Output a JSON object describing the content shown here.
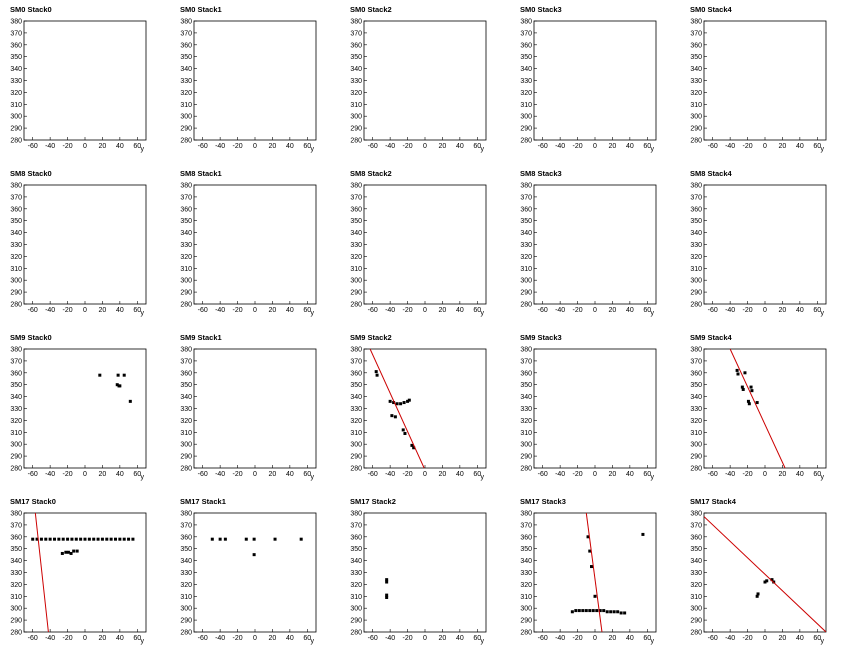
{
  "chart_data": [
    {
      "type": "scatter",
      "title": "SM0 Stack0",
      "xlabel": "y",
      "x": [],
      "values": [],
      "xlim": [
        -70,
        70
      ],
      "ylim": [
        280,
        380
      ],
      "xticks": [
        -60,
        -40,
        -20,
        0,
        20,
        40,
        60
      ],
      "yticks": [
        280,
        290,
        300,
        310,
        320,
        330,
        340,
        350,
        360,
        370,
        380
      ]
    },
    {
      "type": "scatter",
      "title": "SM0 Stack1",
      "xlabel": "y",
      "x": [],
      "values": [],
      "xlim": [
        -70,
        70
      ],
      "ylim": [
        280,
        380
      ],
      "xticks": [
        -60,
        -40,
        -20,
        0,
        20,
        40,
        60
      ],
      "yticks": [
        280,
        290,
        300,
        310,
        320,
        330,
        340,
        350,
        360,
        370,
        380
      ]
    },
    {
      "type": "scatter",
      "title": "SM0 Stack2",
      "xlabel": "y",
      "x": [],
      "values": [],
      "xlim": [
        -70,
        70
      ],
      "ylim": [
        280,
        380
      ],
      "xticks": [
        -60,
        -40,
        -20,
        0,
        20,
        40,
        60
      ],
      "yticks": [
        280,
        290,
        300,
        310,
        320,
        330,
        340,
        350,
        360,
        370,
        380
      ]
    },
    {
      "type": "scatter",
      "title": "SM0 Stack3",
      "xlabel": "y",
      "x": [],
      "values": [],
      "xlim": [
        -70,
        70
      ],
      "ylim": [
        280,
        380
      ],
      "xticks": [
        -60,
        -40,
        -20,
        0,
        20,
        40,
        60
      ],
      "yticks": [
        280,
        290,
        300,
        310,
        320,
        330,
        340,
        350,
        360,
        370,
        380
      ]
    },
    {
      "type": "scatter",
      "title": "SM0 Stack4",
      "xlabel": "y",
      "x": [],
      "values": [],
      "xlim": [
        -70,
        70
      ],
      "ylim": [
        280,
        380
      ],
      "xticks": [
        -60,
        -40,
        -20,
        0,
        20,
        40,
        60
      ],
      "yticks": [
        280,
        290,
        300,
        310,
        320,
        330,
        340,
        350,
        360,
        370,
        380
      ]
    },
    {
      "type": "scatter",
      "title": "SM8 Stack0",
      "xlabel": "y",
      "x": [],
      "values": [],
      "xlim": [
        -70,
        70
      ],
      "ylim": [
        280,
        380
      ],
      "xticks": [
        -60,
        -40,
        -20,
        0,
        20,
        40,
        60
      ],
      "yticks": [
        280,
        290,
        300,
        310,
        320,
        330,
        340,
        350,
        360,
        370,
        380
      ]
    },
    {
      "type": "scatter",
      "title": "SM8 Stack1",
      "xlabel": "y",
      "x": [],
      "values": [],
      "xlim": [
        -70,
        70
      ],
      "ylim": [
        280,
        380
      ],
      "xticks": [
        -60,
        -40,
        -20,
        0,
        20,
        40,
        60
      ],
      "yticks": [
        280,
        290,
        300,
        310,
        320,
        330,
        340,
        350,
        360,
        370,
        380
      ]
    },
    {
      "type": "scatter",
      "title": "SM8 Stack2",
      "xlabel": "y",
      "x": [],
      "values": [],
      "xlim": [
        -70,
        70
      ],
      "ylim": [
        280,
        380
      ],
      "xticks": [
        -60,
        -40,
        -20,
        0,
        20,
        40,
        60
      ],
      "yticks": [
        280,
        290,
        300,
        310,
        320,
        330,
        340,
        350,
        360,
        370,
        380
      ]
    },
    {
      "type": "scatter",
      "title": "SM8 Stack3",
      "xlabel": "y",
      "x": [],
      "values": [],
      "xlim": [
        -70,
        70
      ],
      "ylim": [
        280,
        380
      ],
      "xticks": [
        -60,
        -40,
        -20,
        0,
        20,
        40,
        60
      ],
      "yticks": [
        280,
        290,
        300,
        310,
        320,
        330,
        340,
        350,
        360,
        370,
        380
      ]
    },
    {
      "type": "scatter",
      "title": "SM8 Stack4",
      "xlabel": "y",
      "x": [],
      "values": [],
      "xlim": [
        -70,
        70
      ],
      "ylim": [
        280,
        380
      ],
      "xticks": [
        -60,
        -40,
        -20,
        0,
        20,
        40,
        60
      ],
      "yticks": [
        280,
        290,
        300,
        310,
        320,
        330,
        340,
        350,
        360,
        370,
        380
      ]
    },
    {
      "type": "scatter",
      "title": "SM9 Stack0",
      "xlabel": "y",
      "color": "#000000",
      "x": [
        17,
        38,
        45,
        37,
        39,
        40,
        52
      ],
      "values": [
        358,
        358,
        358,
        350,
        349,
        349,
        336
      ],
      "xlim": [
        -70,
        70
      ],
      "ylim": [
        280,
        380
      ],
      "xticks": [
        -60,
        -40,
        -20,
        0,
        20,
        40,
        60
      ],
      "yticks": [
        280,
        290,
        300,
        310,
        320,
        330,
        340,
        350,
        360,
        370,
        380
      ]
    },
    {
      "type": "scatter",
      "title": "SM9 Stack1",
      "xlabel": "y",
      "x": [],
      "values": [],
      "xlim": [
        -70,
        70
      ],
      "ylim": [
        280,
        380
      ],
      "xticks": [
        -60,
        -40,
        -20,
        0,
        20,
        40,
        60
      ],
      "yticks": [
        280,
        290,
        300,
        310,
        320,
        330,
        340,
        350,
        360,
        370,
        380
      ]
    },
    {
      "type": "scatter",
      "title": "SM9 Stack2",
      "xlabel": "y",
      "color": "#000000",
      "x": [
        -56,
        -55,
        -40,
        -36,
        -32,
        -28,
        -24,
        -20,
        -18,
        -38,
        -34,
        -25,
        -23,
        -15,
        -13
      ],
      "values": [
        361,
        358,
        336,
        335,
        334,
        334,
        335,
        336,
        337,
        324,
        323,
        312,
        309,
        299,
        297
      ],
      "fit": {
        "color": "#cc0000",
        "x": [
          -63,
          -1
        ],
        "values": [
          380,
          280
        ]
      },
      "xlim": [
        -70,
        70
      ],
      "ylim": [
        280,
        380
      ],
      "xticks": [
        -60,
        -40,
        -20,
        0,
        20,
        40,
        60
      ],
      "yticks": [
        280,
        290,
        300,
        310,
        320,
        330,
        340,
        350,
        360,
        370,
        380
      ]
    },
    {
      "type": "scatter",
      "title": "SM9 Stack3",
      "xlabel": "y",
      "x": [],
      "values": [],
      "xlim": [
        -70,
        70
      ],
      "ylim": [
        280,
        380
      ],
      "xticks": [
        -60,
        -40,
        -20,
        0,
        20,
        40,
        60
      ],
      "yticks": [
        280,
        290,
        300,
        310,
        320,
        330,
        340,
        350,
        360,
        370,
        380
      ]
    },
    {
      "type": "scatter",
      "title": "SM9 Stack4",
      "xlabel": "y",
      "color": "#000000",
      "x": [
        -32,
        -31,
        -23,
        -26,
        -25,
        -16,
        -15,
        -19,
        -18,
        -9
      ],
      "values": [
        362,
        359,
        360,
        348,
        346,
        348,
        345,
        336,
        334,
        335
      ],
      "fit": {
        "color": "#cc0000",
        "x": [
          -40,
          23
        ],
        "values": [
          380,
          280
        ]
      },
      "xlim": [
        -70,
        70
      ],
      "ylim": [
        280,
        380
      ],
      "xticks": [
        -60,
        -40,
        -20,
        0,
        20,
        40,
        60
      ],
      "yticks": [
        280,
        290,
        300,
        310,
        320,
        330,
        340,
        350,
        360,
        370,
        380
      ]
    },
    {
      "type": "scatter",
      "title": "SM17 Stack0",
      "xlabel": "y",
      "color": "#000000",
      "x": [
        -60,
        -55,
        -50,
        -45,
        -40,
        -35,
        -30,
        -25,
        -20,
        -15,
        -10,
        -5,
        0,
        5,
        10,
        15,
        20,
        25,
        30,
        35,
        40,
        45,
        50,
        55,
        -26,
        -22,
        -19,
        -16,
        -13,
        -9
      ],
      "values": [
        358,
        358,
        358,
        358,
        358,
        358,
        358,
        358,
        358,
        358,
        358,
        358,
        358,
        358,
        358,
        358,
        358,
        358,
        358,
        358,
        358,
        358,
        358,
        358,
        346,
        347,
        347,
        346,
        348,
        348
      ],
      "fit": {
        "color": "#cc0000",
        "x": [
          -57,
          -42
        ],
        "values": [
          380,
          280
        ]
      },
      "xlim": [
        -70,
        70
      ],
      "ylim": [
        280,
        380
      ],
      "xticks": [
        -60,
        -40,
        -20,
        0,
        20,
        40,
        60
      ],
      "yticks": [
        280,
        290,
        300,
        310,
        320,
        330,
        340,
        350,
        360,
        370,
        380
      ]
    },
    {
      "type": "scatter",
      "title": "SM17 Stack1",
      "xlabel": "y",
      "color": "#000000",
      "x": [
        -49,
        -40,
        -34,
        -10,
        -1,
        23,
        53,
        -1
      ],
      "values": [
        358,
        358,
        358,
        358,
        358,
        358,
        358,
        345
      ],
      "xlim": [
        -70,
        70
      ],
      "ylim": [
        280,
        380
      ],
      "xticks": [
        -60,
        -40,
        -20,
        0,
        20,
        40,
        60
      ],
      "yticks": [
        280,
        290,
        300,
        310,
        320,
        330,
        340,
        350,
        360,
        370,
        380
      ]
    },
    {
      "type": "scatter",
      "title": "SM17 Stack2",
      "xlabel": "y",
      "color": "#000000",
      "x": [
        -44,
        -44,
        -44,
        -44
      ],
      "values": [
        324,
        322,
        311,
        309
      ],
      "xlim": [
        -70,
        70
      ],
      "ylim": [
        280,
        380
      ],
      "xticks": [
        -60,
        -40,
        -20,
        0,
        20,
        40,
        60
      ],
      "yticks": [
        280,
        290,
        300,
        310,
        320,
        330,
        340,
        350,
        360,
        370,
        380
      ]
    },
    {
      "type": "scatter",
      "title": "SM17 Stack3",
      "xlabel": "y",
      "color": "#000000",
      "x": [
        -8,
        -6,
        -4,
        0,
        -26,
        -22,
        -18,
        -14,
        -10,
        -6,
        -2,
        2,
        6,
        10,
        14,
        18,
        22,
        26,
        30,
        34,
        55
      ],
      "values": [
        360,
        348,
        335,
        310,
        297,
        298,
        298,
        298,
        298,
        298,
        298,
        298,
        298,
        298,
        297,
        297,
        297,
        297,
        296,
        296,
        362
      ],
      "fit": {
        "color": "#cc0000",
        "x": [
          -10,
          8
        ],
        "values": [
          380,
          280
        ]
      },
      "xlim": [
        -70,
        70
      ],
      "ylim": [
        280,
        380
      ],
      "xticks": [
        -60,
        -40,
        -20,
        0,
        20,
        40,
        60
      ],
      "yticks": [
        280,
        290,
        300,
        310,
        320,
        330,
        340,
        350,
        360,
        370,
        380
      ]
    },
    {
      "type": "scatter",
      "title": "SM17 Stack4",
      "xlabel": "y",
      "color": "#000000",
      "x": [
        -9,
        -8,
        0,
        2,
        8,
        10
      ],
      "values": [
        310,
        312,
        322,
        323,
        324,
        322
      ],
      "fit": {
        "color": "#cc0000",
        "x": [
          -70,
          70
        ],
        "values": [
          377,
          280
        ]
      },
      "xlim": [
        -70,
        70
      ],
      "ylim": [
        280,
        380
      ],
      "xticks": [
        -60,
        -40,
        -20,
        0,
        20,
        40,
        60
      ],
      "yticks": [
        280,
        290,
        300,
        310,
        320,
        330,
        340,
        350,
        360,
        370,
        380
      ]
    }
  ]
}
